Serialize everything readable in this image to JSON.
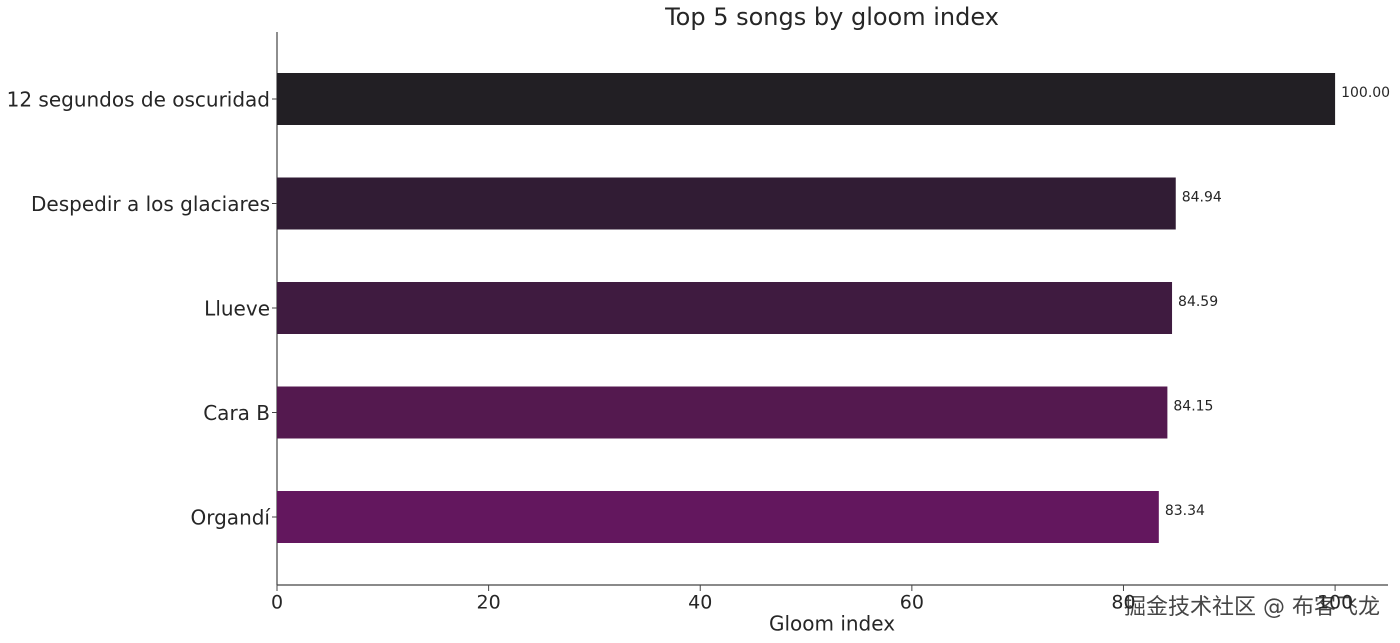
{
  "chart_data": {
    "type": "barh",
    "title": "Top 5 songs by gloom index",
    "x_label": "Gloom index",
    "categories": [
      "12 segundos de oscuridad",
      "Despedir a los glaciares",
      "Llueve",
      "Cara B",
      "Organdí"
    ],
    "values": [
      100,
      84.94,
      84.59,
      84.15,
      83.34
    ],
    "value_labels": [
      "100.00",
      "84.94",
      "84.59",
      "84.15",
      "83.34"
    ],
    "colors": [
      "#221f24",
      "#311c34",
      "#3f1b40",
      "#54194f",
      "#63175e"
    ],
    "xlim": [
      0,
      105
    ],
    "xticks": [
      0,
      20,
      40,
      60,
      80,
      100
    ],
    "grid": false
  },
  "watermark": "掘金技术社区 @ 布客飞龙"
}
